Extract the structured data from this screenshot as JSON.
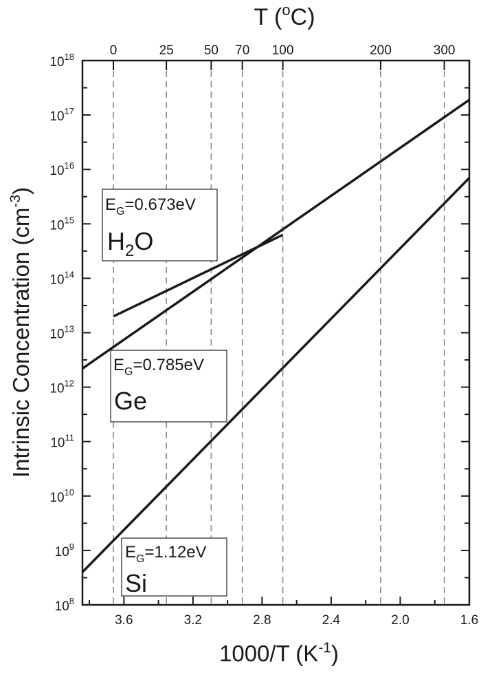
{
  "chart_data": {
    "type": "line",
    "top_axis_label": {
      "main": "T (",
      "sup": "o",
      "tail": "C)"
    },
    "x_label": {
      "main": "1000/T (K",
      "sup": "-1",
      "tail": ")"
    },
    "y_label": {
      "main": "Intrinsic Concentration (cm",
      "sup": "-3",
      "tail": ")"
    },
    "x_axis": {
      "reversed": true,
      "lim": [
        3.84,
        1.6
      ],
      "ticks": [
        "3.6",
        "3.2",
        "2.8",
        "2.4",
        "2.0",
        "1.6"
      ]
    },
    "y_axis": {
      "scale": "log",
      "lim_exponent": [
        8,
        18
      ],
      "base": "10",
      "tick_exponents": [
        "8",
        "9",
        "10",
        "11",
        "12",
        "13",
        "14",
        "15",
        "16",
        "17",
        "18"
      ]
    },
    "top_ticks": [
      {
        "label": "0",
        "celsius": 0
      },
      {
        "label": "25",
        "celsius": 25
      },
      {
        "label": "50",
        "celsius": 50
      },
      {
        "label": "70",
        "celsius": 70
      },
      {
        "label": "100",
        "celsius": 100
      },
      {
        "label": "200",
        "celsius": 200
      },
      {
        "label": "300",
        "celsius": 300
      }
    ],
    "series": [
      {
        "name": "Ge",
        "x": [
          3.84,
          1.6
        ],
        "y": [
          2200000000000.0,
          1.9e+17
        ]
      },
      {
        "name": "H2O",
        "x": [
          3.66,
          2.68
        ],
        "y": [
          20000000000000.0,
          630000000000000.0
        ]
      },
      {
        "name": "Si",
        "x": [
          3.84,
          1.6
        ],
        "y": [
          400000000.0,
          7000000000000000.0
        ]
      }
    ],
    "annotations": {
      "h2o": {
        "eg_main": "E",
        "eg_sub": "G",
        "eg_value": "=0.673eV",
        "name_main": "H",
        "name_sub": "2",
        "name_tail": "O"
      },
      "ge": {
        "eg_main": "E",
        "eg_sub": "G",
        "eg_value": "=0.785eV",
        "name": "Ge"
      },
      "si": {
        "eg_main": "E",
        "eg_sub": "G",
        "eg_value": "=1.12eV",
        "name": "Si"
      }
    }
  }
}
